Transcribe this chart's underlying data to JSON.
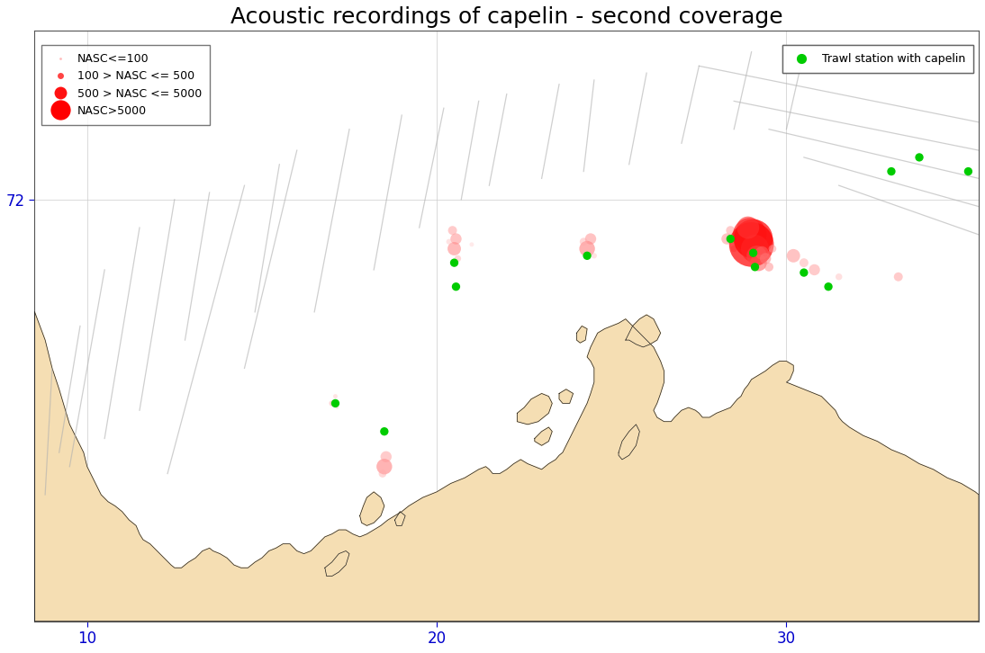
{
  "title": "Acoustic recordings of capelin - second coverage",
  "background_color": "#ffffff",
  "land_color": "#f5deb3",
  "land_edge_color": "#1a1a1a",
  "grid_color": "#cccccc",
  "xlim": [
    8.5,
    35.5
  ],
  "ylim": [
    69.0,
    73.2
  ],
  "xticks": [
    10,
    20,
    30
  ],
  "yticks": [
    72
  ],
  "tick_color": "#0000cc",
  "title_fontsize": 18,
  "ship_track_color": "#b0b0b0",
  "ship_track_alpha": 0.6,
  "ship_track_lw": 0.9,
  "trawl_color": "#00cc00",
  "nasc_base_color": "#ff0000",
  "nasc_small_color": "#ffbbbb",
  "nasc_alpha": 0.55,
  "legend_nasc_labels": [
    "NASC<=100",
    "100 > NASC <= 500",
    "500 > NASC <= 5000",
    "NASC>5000"
  ],
  "legend_nasc_marker_sizes": [
    2,
    5,
    10,
    16
  ],
  "legend_nasc_colors": [
    "#ffbbbb",
    "#ff4444",
    "#ff1111",
    "#ff0000"
  ],
  "ship_tracks": [
    [
      [
        14.5,
        72.1
      ],
      [
        12.3,
        70.05
      ]
    ],
    [
      [
        16.0,
        72.35
      ],
      [
        14.5,
        70.8
      ]
    ],
    [
      [
        17.5,
        72.5
      ],
      [
        16.5,
        71.2
      ]
    ],
    [
      [
        19.0,
        72.6
      ],
      [
        18.2,
        71.5
      ]
    ],
    [
      [
        20.2,
        72.65
      ],
      [
        19.5,
        71.8
      ]
    ],
    [
      [
        21.2,
        72.7
      ],
      [
        20.7,
        72.0
      ]
    ],
    [
      [
        22.0,
        72.75
      ],
      [
        21.5,
        72.1
      ]
    ],
    [
      [
        23.5,
        72.82
      ],
      [
        23.0,
        72.15
      ]
    ],
    [
      [
        24.5,
        72.85
      ],
      [
        24.2,
        72.2
      ]
    ],
    [
      [
        26.0,
        72.9
      ],
      [
        25.5,
        72.25
      ]
    ],
    [
      [
        27.5,
        72.95
      ],
      [
        27.0,
        72.4
      ]
    ],
    [
      [
        29.0,
        73.05
      ],
      [
        28.5,
        72.5
      ]
    ],
    [
      [
        30.5,
        73.05
      ],
      [
        30.0,
        72.5
      ]
    ],
    [
      [
        27.5,
        72.95
      ],
      [
        35.5,
        72.55
      ]
    ],
    [
      [
        28.5,
        72.7
      ],
      [
        35.5,
        72.35
      ]
    ],
    [
      [
        29.5,
        72.5
      ],
      [
        35.5,
        72.15
      ]
    ],
    [
      [
        30.5,
        72.3
      ],
      [
        35.5,
        71.95
      ]
    ],
    [
      [
        31.5,
        72.1
      ],
      [
        35.5,
        71.75
      ]
    ],
    [
      [
        10.5,
        71.5
      ],
      [
        9.5,
        70.1
      ]
    ],
    [
      [
        11.5,
        71.8
      ],
      [
        10.5,
        70.3
      ]
    ],
    [
      [
        12.5,
        72.0
      ],
      [
        11.5,
        70.5
      ]
    ],
    [
      [
        13.5,
        72.05
      ],
      [
        12.8,
        71.0
      ]
    ],
    [
      [
        15.5,
        72.25
      ],
      [
        14.8,
        71.2
      ]
    ],
    [
      [
        9.0,
        70.8
      ],
      [
        8.8,
        69.9
      ]
    ],
    [
      [
        9.8,
        71.1
      ],
      [
        9.2,
        70.2
      ]
    ]
  ],
  "nasc_points": [
    {
      "lon": 17.0,
      "lat": 70.55,
      "size": 5,
      "color": "#ffaaaa",
      "alpha": 0.5
    },
    {
      "lon": 17.1,
      "lat": 70.6,
      "size": 4,
      "color": "#ffbbbb",
      "alpha": 0.4
    },
    {
      "lon": 17.15,
      "lat": 70.52,
      "size": 3,
      "color": "#ffcccc",
      "alpha": 0.4
    },
    {
      "lon": 20.5,
      "lat": 71.65,
      "size": 12,
      "color": "#ff7777",
      "alpha": 0.5
    },
    {
      "lon": 20.55,
      "lat": 71.72,
      "size": 10,
      "color": "#ff8888",
      "alpha": 0.5
    },
    {
      "lon": 20.45,
      "lat": 71.78,
      "size": 8,
      "color": "#ff9999",
      "alpha": 0.5
    },
    {
      "lon": 20.6,
      "lat": 71.58,
      "size": 6,
      "color": "#ffaaaa",
      "alpha": 0.45
    },
    {
      "lon": 20.35,
      "lat": 71.7,
      "size": 5,
      "color": "#ffbbbb",
      "alpha": 0.4
    },
    {
      "lon": 21.0,
      "lat": 71.68,
      "size": 4,
      "color": "#ffcccc",
      "alpha": 0.4
    },
    {
      "lon": 24.3,
      "lat": 71.65,
      "size": 14,
      "color": "#ff6666",
      "alpha": 0.5
    },
    {
      "lon": 24.4,
      "lat": 71.72,
      "size": 10,
      "color": "#ff8888",
      "alpha": 0.5
    },
    {
      "lon": 24.2,
      "lat": 71.7,
      "size": 7,
      "color": "#ffaaaa",
      "alpha": 0.45
    },
    {
      "lon": 24.5,
      "lat": 71.6,
      "size": 5,
      "color": "#ffbbbb",
      "alpha": 0.4
    },
    {
      "lon": 28.3,
      "lat": 71.72,
      "size": 10,
      "color": "#ff8888",
      "alpha": 0.5
    },
    {
      "lon": 28.4,
      "lat": 71.78,
      "size": 8,
      "color": "#ff9999",
      "alpha": 0.5
    },
    {
      "lon": 28.5,
      "lat": 71.65,
      "size": 6,
      "color": "#ffaaaa",
      "alpha": 0.45
    },
    {
      "lon": 29.0,
      "lat": 71.68,
      "size": 40,
      "color": "#ff0000",
      "alpha": 0.7
    },
    {
      "lon": 29.05,
      "lat": 71.72,
      "size": 35,
      "color": "#ff0000",
      "alpha": 0.7
    },
    {
      "lon": 28.95,
      "lat": 71.75,
      "size": 30,
      "color": "#ff1111",
      "alpha": 0.65
    },
    {
      "lon": 29.1,
      "lat": 71.65,
      "size": 25,
      "color": "#ff2222",
      "alpha": 0.65
    },
    {
      "lon": 28.9,
      "lat": 71.8,
      "size": 20,
      "color": "#ff3333",
      "alpha": 0.6
    },
    {
      "lon": 29.15,
      "lat": 71.6,
      "size": 18,
      "color": "#ff4444",
      "alpha": 0.6
    },
    {
      "lon": 29.2,
      "lat": 71.55,
      "size": 15,
      "color": "#ff5555",
      "alpha": 0.55
    },
    {
      "lon": 29.3,
      "lat": 71.62,
      "size": 12,
      "color": "#ff6666",
      "alpha": 0.55
    },
    {
      "lon": 29.4,
      "lat": 71.58,
      "size": 10,
      "color": "#ff7777",
      "alpha": 0.5
    },
    {
      "lon": 29.5,
      "lat": 71.52,
      "size": 8,
      "color": "#ff8888",
      "alpha": 0.5
    },
    {
      "lon": 29.6,
      "lat": 71.65,
      "size": 7,
      "color": "#ff9999",
      "alpha": 0.5
    },
    {
      "lon": 30.2,
      "lat": 71.6,
      "size": 12,
      "color": "#ff8888",
      "alpha": 0.5
    },
    {
      "lon": 30.5,
      "lat": 71.55,
      "size": 8,
      "color": "#ffaaaa",
      "alpha": 0.5
    },
    {
      "lon": 30.8,
      "lat": 71.5,
      "size": 10,
      "color": "#ff9999",
      "alpha": 0.5
    },
    {
      "lon": 31.5,
      "lat": 71.45,
      "size": 6,
      "color": "#ffbbbb",
      "alpha": 0.45
    },
    {
      "lon": 33.2,
      "lat": 71.45,
      "size": 8,
      "color": "#ff9999",
      "alpha": 0.5
    },
    {
      "lon": 18.5,
      "lat": 70.1,
      "size": 14,
      "color": "#ff7777",
      "alpha": 0.55
    },
    {
      "lon": 18.55,
      "lat": 70.17,
      "size": 10,
      "color": "#ff9999",
      "alpha": 0.5
    },
    {
      "lon": 18.45,
      "lat": 70.05,
      "size": 7,
      "color": "#ffaaaa",
      "alpha": 0.45
    }
  ],
  "trawl_stations": [
    {
      "lon": 17.1,
      "lat": 70.55
    },
    {
      "lon": 18.5,
      "lat": 70.35
    },
    {
      "lon": 20.5,
      "lat": 71.55
    },
    {
      "lon": 20.55,
      "lat": 71.38
    },
    {
      "lon": 24.3,
      "lat": 71.6
    },
    {
      "lon": 28.4,
      "lat": 71.72
    },
    {
      "lon": 29.05,
      "lat": 71.62
    },
    {
      "lon": 29.1,
      "lat": 71.52
    },
    {
      "lon": 30.5,
      "lat": 71.48
    },
    {
      "lon": 31.2,
      "lat": 71.38
    },
    {
      "lon": 33.0,
      "lat": 72.2
    },
    {
      "lon": 33.8,
      "lat": 72.3
    },
    {
      "lon": 35.2,
      "lat": 72.2
    }
  ]
}
